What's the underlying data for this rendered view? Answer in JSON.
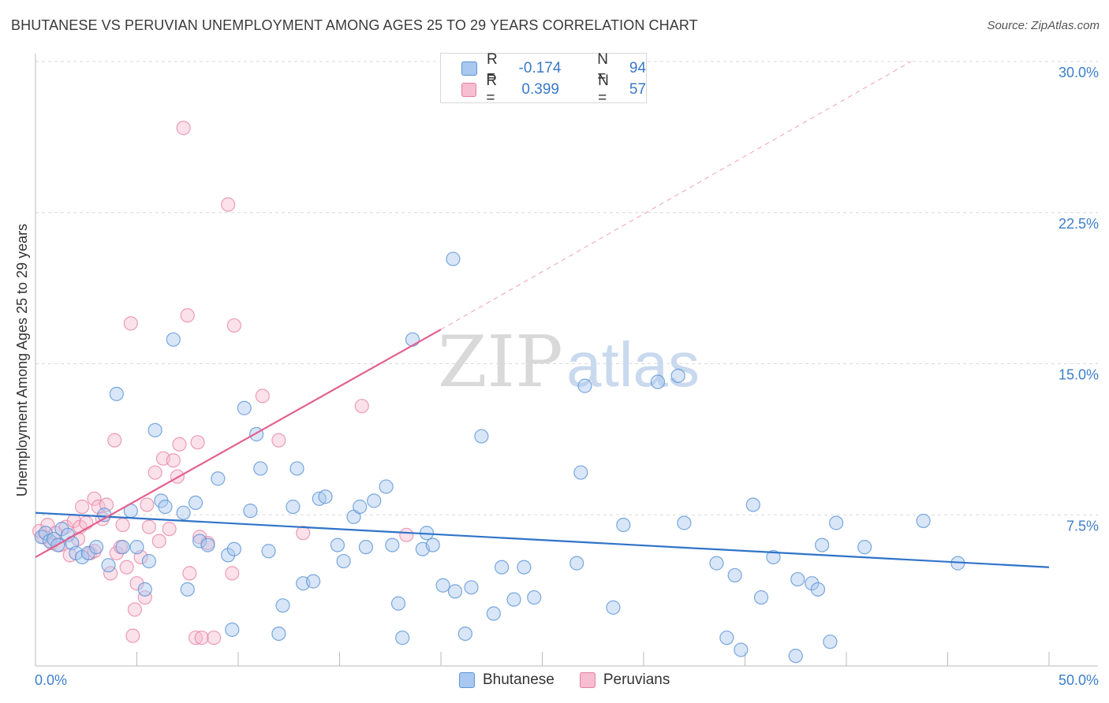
{
  "header": {
    "title": "BHUTANESE VS PERUVIAN UNEMPLOYMENT AMONG AGES 25 TO 29 YEARS CORRELATION CHART",
    "source": "Source: ZipAtlas.com"
  },
  "legend": {
    "rows": [
      {
        "r_label": "R =",
        "r_value": "-0.174",
        "n_label": "N =",
        "n_value": "94"
      },
      {
        "r_label": "R =",
        "r_value": "0.399",
        "n_label": "N =",
        "n_value": "57"
      }
    ]
  },
  "watermark": {
    "zip": "ZIP",
    "atlas": "atlas"
  },
  "colors": {
    "blue_fill": "#a9c8f0",
    "blue_stroke": "#5b93d6",
    "blue_line": "#2f73c9",
    "pink_fill": "#f7bdd0",
    "pink_stroke": "#e57fa2",
    "pink_line": "#e2608e",
    "tick_text": "#3d7fcb",
    "grid": "#d9d9d9"
  },
  "chart_data": {
    "type": "scatter",
    "title": "BHUTANESE VS PERUVIAN UNEMPLOYMENT AMONG AGES 25 TO 29 YEARS CORRELATION CHART",
    "xlabel": "",
    "ylabel": "Unemployment Among Ages 25 to 29 years",
    "xlim": [
      0,
      50
    ],
    "ylim": [
      0,
      30
    ],
    "x_tick_labels": [
      "0.0%",
      "50.0%"
    ],
    "y_ticks": [
      7.5,
      15.0,
      22.5,
      30.0
    ],
    "y_tick_labels": [
      "7.5%",
      "15.0%",
      "22.5%",
      "30.0%"
    ],
    "grid": true,
    "legend_position": "top-center",
    "series": [
      {
        "name": "Bhutanese",
        "color": "#a9c8f0",
        "points": [
          [
            0.3,
            6.4
          ],
          [
            0.5,
            6.6
          ],
          [
            0.7,
            6.2
          ],
          [
            0.9,
            6.3
          ],
          [
            1.1,
            6.0
          ],
          [
            1.3,
            6.8
          ],
          [
            1.6,
            6.5
          ],
          [
            1.8,
            6.1
          ],
          [
            2.0,
            5.6
          ],
          [
            2.3,
            5.4
          ],
          [
            2.6,
            5.6
          ],
          [
            3.0,
            5.9
          ],
          [
            3.4,
            7.5
          ],
          [
            3.6,
            5.0
          ],
          [
            4.0,
            13.5
          ],
          [
            4.3,
            5.9
          ],
          [
            4.7,
            7.7
          ],
          [
            5.0,
            5.9
          ],
          [
            5.4,
            3.8
          ],
          [
            5.6,
            5.2
          ],
          [
            5.9,
            11.7
          ],
          [
            6.2,
            8.2
          ],
          [
            6.4,
            7.9
          ],
          [
            6.8,
            16.2
          ],
          [
            7.3,
            7.6
          ],
          [
            7.5,
            3.8
          ],
          [
            7.9,
            8.1
          ],
          [
            8.1,
            6.2
          ],
          [
            8.5,
            6.0
          ],
          [
            9.0,
            9.3
          ],
          [
            9.5,
            5.5
          ],
          [
            9.7,
            1.8
          ],
          [
            9.8,
            5.8
          ],
          [
            10.3,
            12.8
          ],
          [
            10.6,
            7.7
          ],
          [
            10.9,
            11.5
          ],
          [
            11.1,
            9.8
          ],
          [
            11.5,
            5.7
          ],
          [
            12.0,
            1.6
          ],
          [
            12.2,
            3.0
          ],
          [
            12.7,
            7.9
          ],
          [
            12.9,
            9.8
          ],
          [
            13.2,
            4.1
          ],
          [
            13.7,
            4.2
          ],
          [
            14.0,
            8.3
          ],
          [
            14.3,
            8.4
          ],
          [
            14.9,
            6.0
          ],
          [
            15.2,
            5.2
          ],
          [
            15.7,
            7.4
          ],
          [
            16.0,
            7.9
          ],
          [
            16.3,
            5.9
          ],
          [
            16.7,
            8.2
          ],
          [
            17.3,
            8.9
          ],
          [
            17.6,
            6.0
          ],
          [
            17.9,
            3.1
          ],
          [
            18.1,
            1.4
          ],
          [
            18.6,
            16.2
          ],
          [
            19.1,
            5.8
          ],
          [
            19.3,
            6.6
          ],
          [
            19.6,
            6.0
          ],
          [
            20.1,
            4.0
          ],
          [
            20.6,
            20.2
          ],
          [
            20.7,
            3.7
          ],
          [
            21.2,
            1.6
          ],
          [
            21.5,
            3.9
          ],
          [
            22.0,
            11.4
          ],
          [
            22.6,
            2.6
          ],
          [
            23.0,
            4.9
          ],
          [
            23.6,
            3.3
          ],
          [
            24.1,
            4.9
          ],
          [
            24.6,
            3.4
          ],
          [
            26.7,
            5.1
          ],
          [
            26.9,
            9.6
          ],
          [
            27.1,
            13.9
          ],
          [
            28.5,
            2.9
          ],
          [
            29.0,
            7.0
          ],
          [
            30.7,
            14.1
          ],
          [
            31.7,
            14.4
          ],
          [
            32.0,
            7.1
          ],
          [
            33.6,
            5.1
          ],
          [
            34.1,
            1.4
          ],
          [
            34.5,
            4.5
          ],
          [
            34.8,
            0.8
          ],
          [
            35.4,
            8.0
          ],
          [
            35.8,
            3.4
          ],
          [
            36.4,
            5.4
          ],
          [
            37.5,
            0.5
          ],
          [
            37.6,
            4.3
          ],
          [
            38.3,
            4.1
          ],
          [
            38.6,
            3.8
          ],
          [
            38.8,
            6.0
          ],
          [
            39.2,
            1.2
          ],
          [
            39.5,
            7.1
          ],
          [
            40.9,
            5.9
          ],
          [
            43.8,
            7.2
          ],
          [
            45.5,
            5.1
          ]
        ]
      },
      {
        "name": "Peruvians",
        "color": "#f7bdd0",
        "points": [
          [
            0.2,
            6.7
          ],
          [
            0.4,
            6.4
          ],
          [
            0.6,
            7.0
          ],
          [
            0.8,
            6.1
          ],
          [
            1.0,
            6.6
          ],
          [
            1.2,
            6.0
          ],
          [
            1.5,
            6.9
          ],
          [
            1.7,
            5.5
          ],
          [
            1.9,
            7.2
          ],
          [
            2.1,
            6.3
          ],
          [
            2.2,
            6.9
          ],
          [
            2.3,
            7.9
          ],
          [
            2.5,
            7.1
          ],
          [
            2.7,
            5.6
          ],
          [
            2.9,
            5.7
          ],
          [
            2.9,
            8.3
          ],
          [
            3.1,
            7.9
          ],
          [
            3.3,
            7.3
          ],
          [
            3.5,
            8.0
          ],
          [
            3.7,
            4.6
          ],
          [
            3.9,
            11.2
          ],
          [
            4.0,
            5.6
          ],
          [
            4.2,
            5.9
          ],
          [
            4.3,
            7.0
          ],
          [
            4.5,
            4.9
          ],
          [
            4.7,
            17.0
          ],
          [
            4.8,
            1.5
          ],
          [
            4.9,
            2.8
          ],
          [
            5.0,
            4.1
          ],
          [
            5.2,
            5.4
          ],
          [
            5.4,
            3.4
          ],
          [
            5.5,
            8.0
          ],
          [
            5.6,
            6.9
          ],
          [
            5.9,
            9.6
          ],
          [
            6.1,
            6.2
          ],
          [
            6.3,
            10.3
          ],
          [
            6.6,
            6.8
          ],
          [
            6.8,
            10.2
          ],
          [
            7.0,
            9.4
          ],
          [
            7.1,
            11.0
          ],
          [
            7.3,
            26.7
          ],
          [
            7.5,
            17.4
          ],
          [
            7.6,
            4.6
          ],
          [
            7.9,
            1.4
          ],
          [
            8.0,
            11.1
          ],
          [
            8.1,
            6.4
          ],
          [
            8.2,
            1.4
          ],
          [
            8.5,
            6.1
          ],
          [
            8.8,
            1.4
          ],
          [
            9.5,
            22.9
          ],
          [
            9.7,
            4.6
          ],
          [
            9.8,
            16.9
          ],
          [
            11.2,
            13.4
          ],
          [
            12.0,
            11.2
          ],
          [
            13.2,
            6.6
          ],
          [
            16.1,
            12.9
          ],
          [
            18.3,
            6.5
          ]
        ]
      }
    ],
    "trend_lines": [
      {
        "series": "Bhutanese",
        "x": [
          0,
          50
        ],
        "y": [
          7.6,
          4.9
        ]
      },
      {
        "series": "Peruvians",
        "x": [
          0,
          20
        ],
        "y": [
          5.4,
          16.7
        ],
        "dashed_extension_to": [
          43.2,
          30.0
        ]
      }
    ]
  },
  "bottom_legend": {
    "items": [
      "Bhutanese",
      "Peruvians"
    ]
  }
}
